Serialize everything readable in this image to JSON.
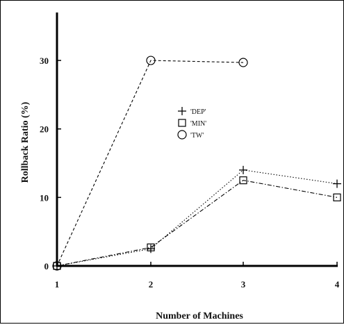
{
  "chart_data": {
    "type": "line",
    "title": "",
    "xlabel": "Number of Machines",
    "ylabel": "Rollback Ratio (%)",
    "x": [
      1,
      2,
      3,
      4
    ],
    "xticks": [
      "1",
      "2",
      "3",
      "4"
    ],
    "yticks": [
      "0",
      "10",
      "20",
      "30"
    ],
    "ylim": [
      0,
      37
    ],
    "xlim": [
      1,
      4
    ],
    "grid": false,
    "legend_position": "center",
    "series": [
      {
        "name": "'DEP'",
        "marker": "plus",
        "line": "dotted",
        "values": [
          0,
          2.5,
          14,
          12
        ]
      },
      {
        "name": "'MIN'",
        "marker": "square",
        "line": "dash-dot",
        "values": [
          0,
          2.7,
          12.5,
          10
        ]
      },
      {
        "name": "'TW'",
        "marker": "circle",
        "line": "dashed",
        "values": [
          0,
          30,
          29.7,
          null
        ]
      }
    ]
  }
}
